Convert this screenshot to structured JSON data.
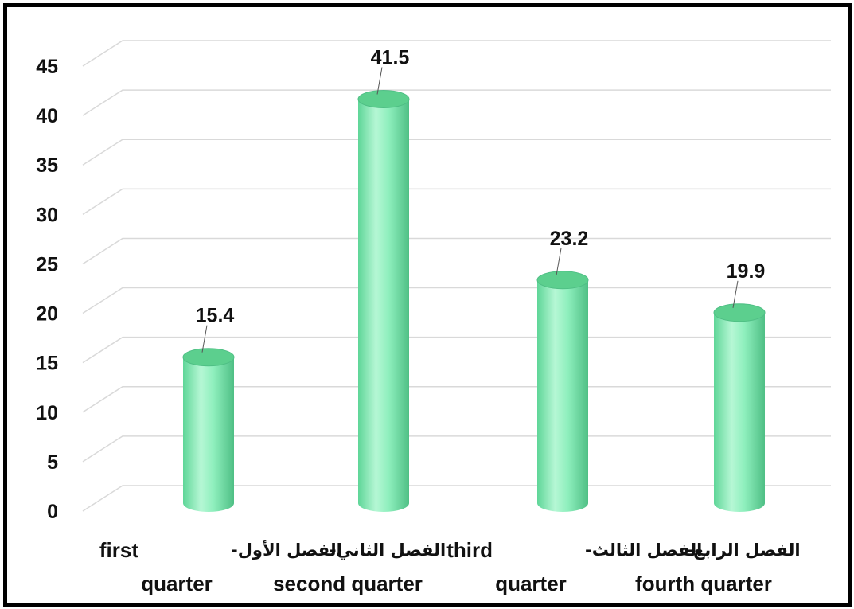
{
  "chart_data": {
    "type": "bar",
    "style": "3d-cylinder",
    "categories": [
      {
        "ar": "الفصل الأول-",
        "en_line1": "first",
        "en_line2": "quarter"
      },
      {
        "ar": "الفصل الثاني-",
        "en_line1": "",
        "en_line2": "second quarter"
      },
      {
        "ar": "الفصل الثالث-",
        "en_line1": "third",
        "en_line2": "quarter"
      },
      {
        "ar": "الفصل الرابع-",
        "en_line1": "",
        "en_line2": "fourth quarter"
      }
    ],
    "values": [
      15.4,
      41.5,
      23.2,
      19.9
    ],
    "value_labels": [
      "15.4",
      "41.5",
      "23.2",
      "19.9"
    ],
    "ylim": [
      0,
      45
    ],
    "yticks": [
      "0",
      "5",
      "10",
      "15",
      "20",
      "25",
      "30",
      "35",
      "40",
      "45"
    ],
    "grid": true,
    "legend": "none",
    "colors": {
      "bar_fill": "#86edb5",
      "bar_highlight": "#b6f7d5",
      "bar_shadow": "#4ec486",
      "bar_top": "#5ccf8e",
      "grid": "#d9d9d9",
      "frame": "#000000"
    }
  }
}
